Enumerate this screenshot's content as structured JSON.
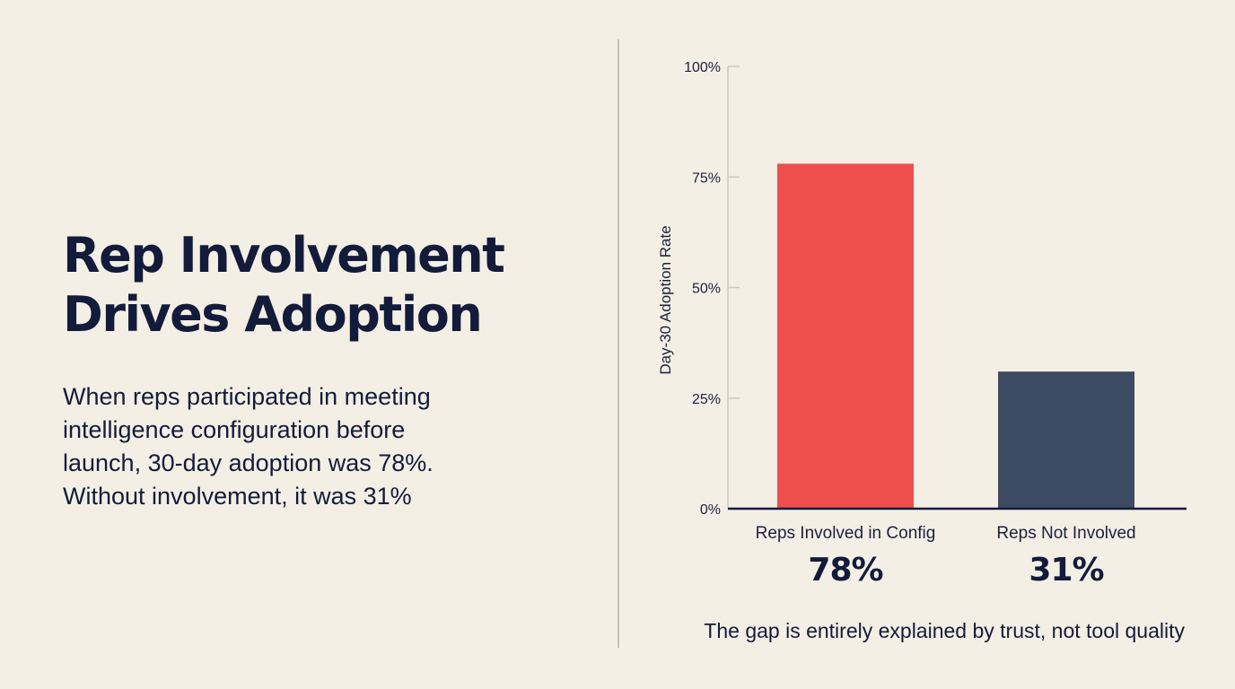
{
  "headline": [
    "Rep Involvement",
    "Drives Adoption"
  ],
  "body_lines": [
    "When reps participated in meeting",
    "intelligence configuration before",
    "launch, 30-day adoption was 78%.",
    "Without involvement, it was 31%"
  ],
  "caption": "The gap is entirely explained by trust, not tool quality",
  "chart_data": {
    "type": "bar",
    "title": "",
    "ylabel": "Day-30 Adoption Rate",
    "xlabel": "",
    "ylim": [
      0,
      100
    ],
    "yticks": [
      0,
      25,
      50,
      75,
      100
    ],
    "ytick_labels": [
      "0%",
      "25%",
      "50%",
      "75%",
      "100%"
    ],
    "grid": false,
    "categories": [
      "Reps Involved in Config",
      "Reps Not Involved"
    ],
    "values": [
      78,
      31
    ],
    "value_labels": [
      "78%",
      "31%"
    ],
    "colors": [
      "#ef4f4c",
      "#3d4b63"
    ]
  }
}
